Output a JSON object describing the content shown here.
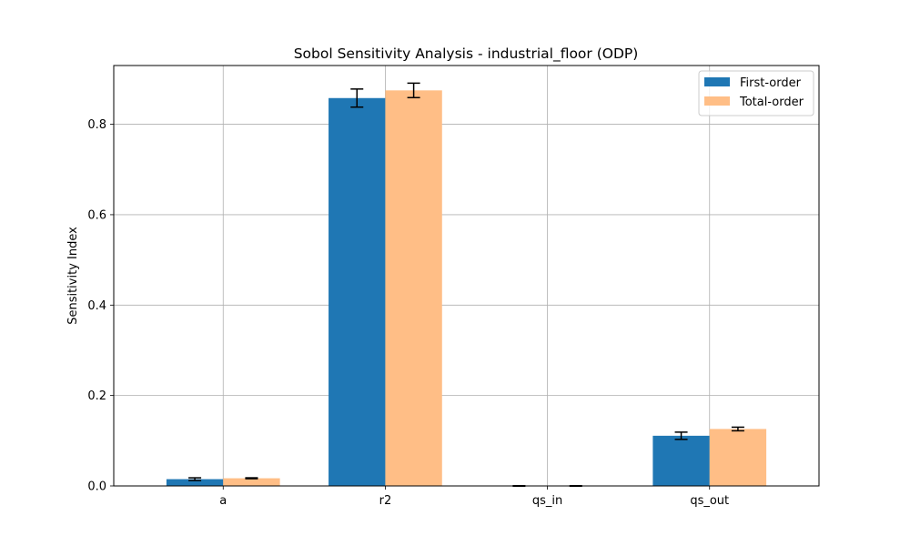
{
  "chart_data": {
    "type": "bar",
    "title": "Sobol Sensitivity Analysis - industrial_floor (ODP)",
    "xlabel": "",
    "ylabel": "Sensitivity Index",
    "categories": [
      "a",
      "r2",
      "qs_in",
      "qs_out"
    ],
    "ylim": [
      0,
      0.93
    ],
    "yticks": [
      0.0,
      0.2,
      0.4,
      0.6,
      0.8
    ],
    "ytick_labels": [
      "0.0",
      "0.2",
      "0.4",
      "0.6",
      "0.8"
    ],
    "grid": true,
    "legend_position": "top-right",
    "series": [
      {
        "name": "First-order",
        "color": "#1f77b4",
        "values": [
          0.015,
          0.858,
          0.0,
          0.111
        ],
        "errors": [
          0.003,
          0.02,
          0.0005,
          0.008
        ]
      },
      {
        "name": "Total-order",
        "color": "#ffbe86",
        "values": [
          0.017,
          0.875,
          0.0,
          0.126
        ],
        "errors": [
          0.001,
          0.016,
          0.0005,
          0.004
        ]
      }
    ]
  }
}
